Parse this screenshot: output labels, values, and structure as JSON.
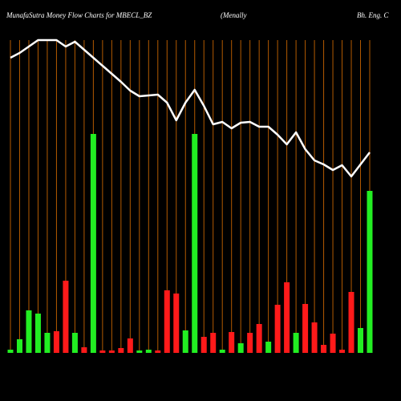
{
  "chart_data": {
    "type": "bar",
    "title": "MunafaSutra  Money Flow  Charts for MBECL_BZ",
    "subtitle_parts": [
      "(Menally",
      "Bh. Eng. C"
    ],
    "categories": [
      null,
      null,
      null,
      null,
      null,
      null,
      null,
      null,
      null,
      null,
      null,
      null,
      null,
      null,
      null,
      null,
      null,
      null,
      null,
      null,
      null,
      null,
      null,
      null,
      null,
      null,
      null,
      null,
      null,
      null,
      null,
      null,
      null,
      null,
      null,
      null,
      null,
      null,
      null,
      null
    ],
    "values": [
      4,
      17,
      53,
      49,
      25,
      27,
      90,
      25,
      7,
      273,
      3,
      3,
      6,
      18,
      3,
      4,
      3,
      78,
      74,
      28,
      273,
      20,
      25,
      4,
      26,
      12,
      25,
      36,
      14,
      60,
      88,
      25,
      61,
      38,
      10,
      24,
      4,
      76,
      31,
      202
    ],
    "colors": [
      "#22ee22",
      "#22ee22",
      "#22ee22",
      "#22ee22",
      "#22ee22",
      "#ff1a1a",
      "#ff1a1a",
      "#22ee22",
      "#ff1a1a",
      "#22ee22",
      "#ff1a1a",
      "#ff1a1a",
      "#ff1a1a",
      "#ff1a1a",
      "#22ee22",
      "#22ee22",
      "#ff1a1a",
      "#ff1a1a",
      "#ff1a1a",
      "#22ee22",
      "#22ee22",
      "#ff1a1a",
      "#ff1a1a",
      "#22ee22",
      "#ff1a1a",
      "#22ee22",
      "#ff1a1a",
      "#ff1a1a",
      "#22ee22",
      "#ff1a1a",
      "#ff1a1a",
      "#22ee22",
      "#ff1a1a",
      "#ff1a1a",
      "#ff1a1a",
      "#ff1a1a",
      "#ff1a1a",
      "#ff1a1a",
      "#22ee22",
      "#22ee22"
    ],
    "line": {
      "color": "#ffffff",
      "values": [
        368,
        374,
        382,
        390,
        390,
        390,
        382,
        388,
        378,
        368,
        358,
        348,
        338,
        327,
        320,
        321,
        322,
        312,
        290,
        312,
        328,
        308,
        285,
        288,
        280,
        287,
        288,
        282,
        282,
        272,
        260,
        275,
        254,
        240,
        235,
        228,
        234,
        220,
        235,
        250
      ]
    },
    "column_line_color": "#b35a00",
    "ylim": [
      0,
      390
    ]
  }
}
